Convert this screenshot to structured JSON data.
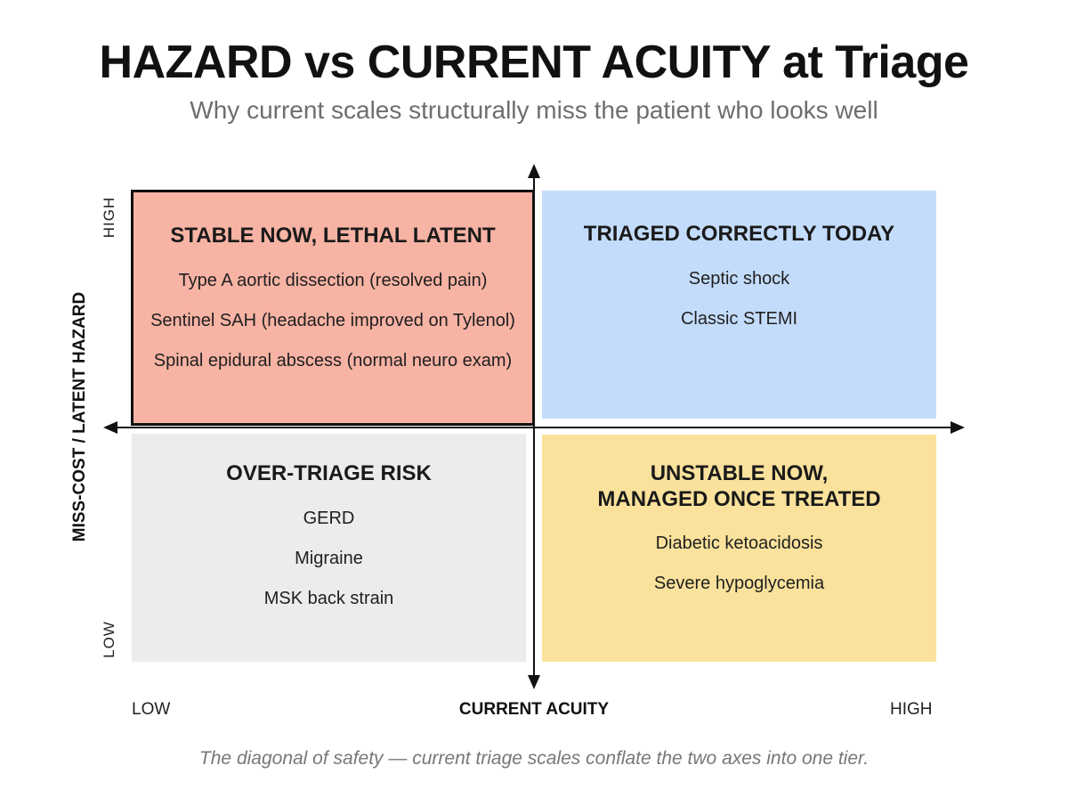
{
  "title": "HAZARD vs CURRENT ACUITY at Triage",
  "subtitle": "Why current scales structurally miss the patient who looks well",
  "axes": {
    "y_label": "MISS-COST / LATENT HAZARD",
    "y_high": "HIGH",
    "y_low": "LOW",
    "x_label": "CURRENT ACUITY",
    "x_low": "LOW",
    "x_high": "HIGH"
  },
  "quadrants": {
    "top_left": {
      "title": "STABLE NOW, LETHAL LATENT",
      "color": "#f7b3a4",
      "highlighted": true,
      "items": [
        "Type A aortic dissection (resolved pain)",
        "Sentinel SAH (headache improved on Tylenol)",
        "Spinal epidural abscess (normal neuro exam)"
      ]
    },
    "top_right": {
      "title": "TRIAGED CORRECTLY TODAY",
      "color": "#c4dcfb",
      "items": [
        "Septic shock",
        "Classic STEMI"
      ]
    },
    "bottom_left": {
      "title": "OVER-TRIAGE RISK",
      "color": "#ececec",
      "items": [
        "GERD",
        "Migraine",
        "MSK back strain"
      ]
    },
    "bottom_right": {
      "title_line1": "UNSTABLE NOW,",
      "title_line2": "MANAGED ONCE TREATED",
      "color": "#fae29c",
      "items": [
        "Diabetic ketoacidosis",
        "Severe hypoglycemia"
      ]
    }
  },
  "caption": "The diagonal of safety — current triage scales conflate the two axes into one tier."
}
